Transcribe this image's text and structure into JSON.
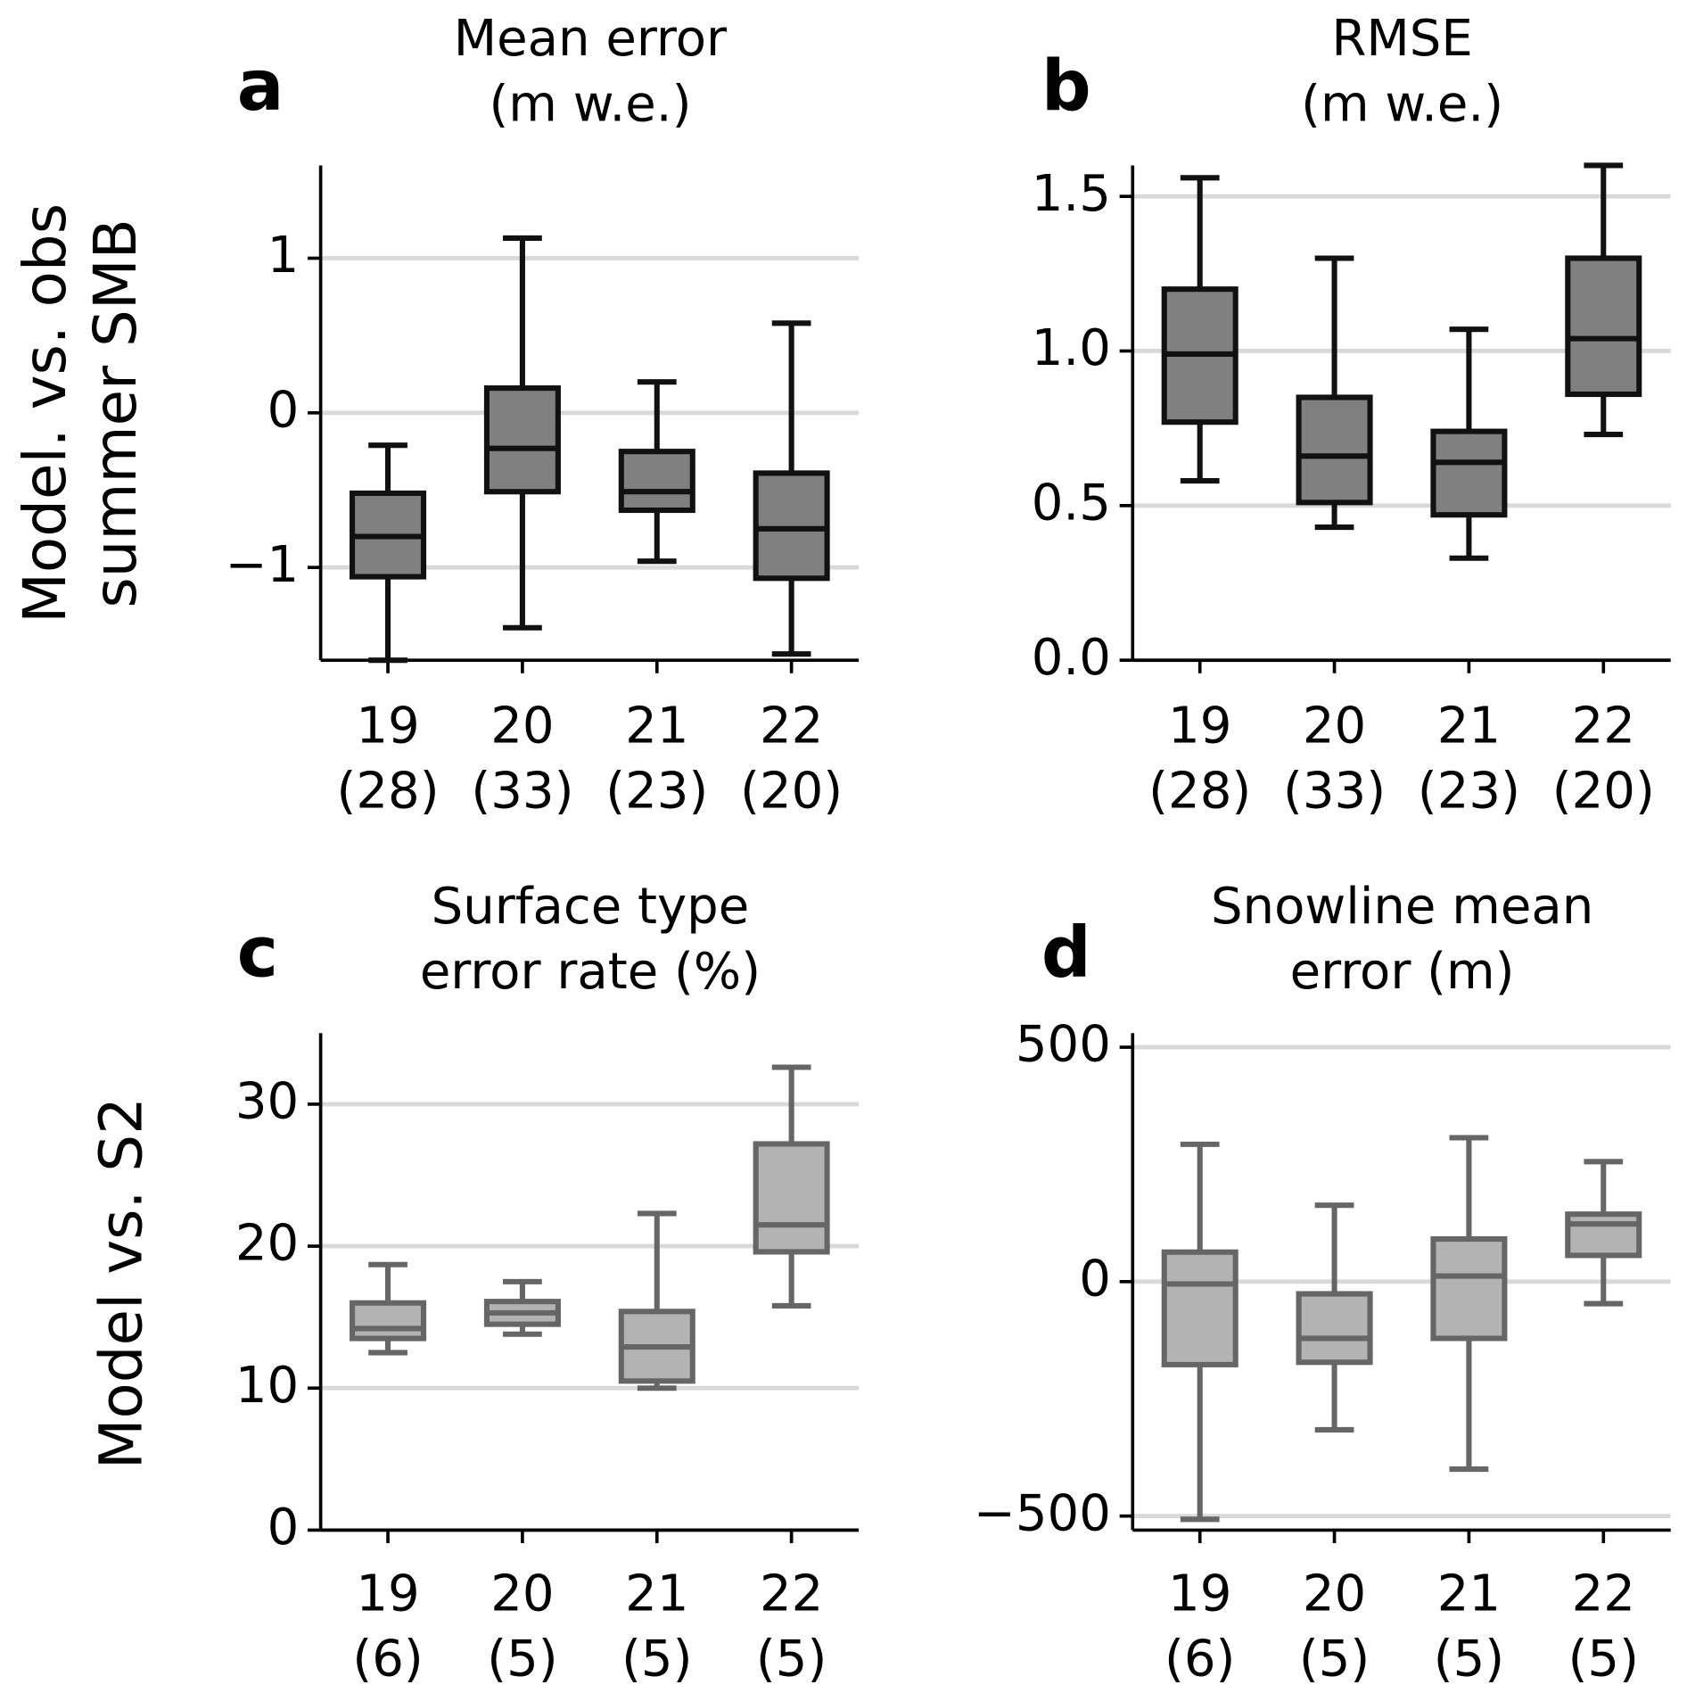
{
  "chart_data": [
    {
      "type": "box",
      "panel": "a",
      "title": [
        "Mean error",
        "(m w.e.)"
      ],
      "ylabel": [
        "Model. vs. obs",
        "summer SMB"
      ],
      "categories": [
        "19",
        "20",
        "21",
        "22"
      ],
      "sample_size_labels": [
        "(28)",
        "(33)",
        "(23)",
        "(20)"
      ],
      "whislo": [
        -1.6,
        -1.39,
        -0.96,
        -1.56
      ],
      "q1": [
        -1.06,
        -0.51,
        -0.63,
        -1.07
      ],
      "med": [
        -0.8,
        -0.23,
        -0.51,
        -0.75
      ],
      "q3": [
        -0.52,
        0.16,
        -0.25,
        -0.39
      ],
      "whishi": [
        -0.21,
        1.13,
        0.2,
        0.58
      ],
      "color": "#808080",
      "edgecolor": "#111111",
      "ylim": [
        -1.6,
        1.6
      ],
      "yticks": [
        {
          "value": -1,
          "label": "−1"
        },
        0,
        1
      ],
      "grid": true
    },
    {
      "type": "box",
      "panel": "b",
      "title": [
        "RMSE",
        "(m w.e.)"
      ],
      "categories": [
        "19",
        "20",
        "21",
        "22"
      ],
      "sample_size_labels": [
        "(28)",
        "(33)",
        "(23)",
        "(20)"
      ],
      "whislo": [
        0.58,
        0.43,
        0.33,
        0.73
      ],
      "q1": [
        0.77,
        0.51,
        0.47,
        0.86
      ],
      "med": [
        0.99,
        0.66,
        0.64,
        1.04
      ],
      "q3": [
        1.2,
        0.85,
        0.74,
        1.3
      ],
      "whishi": [
        1.56,
        1.3,
        1.07,
        1.6
      ],
      "color": "#808080",
      "edgecolor": "#111111",
      "ylim": [
        0,
        1.6
      ],
      "yticks": [
        {
          "value": 0,
          "label": "0.0"
        },
        0.5,
        {
          "value": 1,
          "label": "1.0"
        },
        1.5
      ],
      "grid": true
    },
    {
      "type": "box",
      "panel": "c",
      "title": [
        "Surface type",
        "error rate (%)"
      ],
      "ylabel": [
        "Model vs. S2"
      ],
      "categories": [
        "19",
        "20",
        "21",
        "22"
      ],
      "sample_size_labels": [
        "(6)",
        "(5)",
        "(5)",
        "(5)"
      ],
      "whislo": [
        12.5,
        13.8,
        10.0,
        15.8
      ],
      "q1": [
        13.5,
        14.5,
        10.5,
        19.6
      ],
      "med": [
        14.2,
        15.3,
        12.9,
        21.5
      ],
      "q3": [
        16.0,
        16.1,
        15.4,
        27.2
      ],
      "whishi": [
        18.7,
        17.5,
        22.3,
        32.6
      ],
      "color": "#b3b3b3",
      "edgecolor": "#666666",
      "ylim": [
        0,
        35
      ],
      "yticks": [
        0,
        10,
        20,
        30
      ],
      "grid": true
    },
    {
      "type": "box",
      "panel": "d",
      "title": [
        "Snowline mean",
        "error (m)"
      ],
      "categories": [
        "19",
        "20",
        "21",
        "22"
      ],
      "sample_size_labels": [
        "(6)",
        "(5)",
        "(5)",
        "(5)"
      ],
      "whislo": [
        -507,
        -316,
        -400,
        -47
      ],
      "q1": [
        -177,
        -172,
        -121,
        56
      ],
      "med": [
        -5,
        -121,
        12,
        123
      ],
      "q3": [
        63,
        -26,
        91,
        144
      ],
      "whishi": [
        293,
        163,
        307,
        256
      ],
      "color": "#b3b3b3",
      "edgecolor": "#666666",
      "ylim": [
        -530,
        530
      ],
      "yticks": [
        {
          "value": -500,
          "label": "−500"
        },
        0,
        500
      ],
      "grid": true
    }
  ]
}
